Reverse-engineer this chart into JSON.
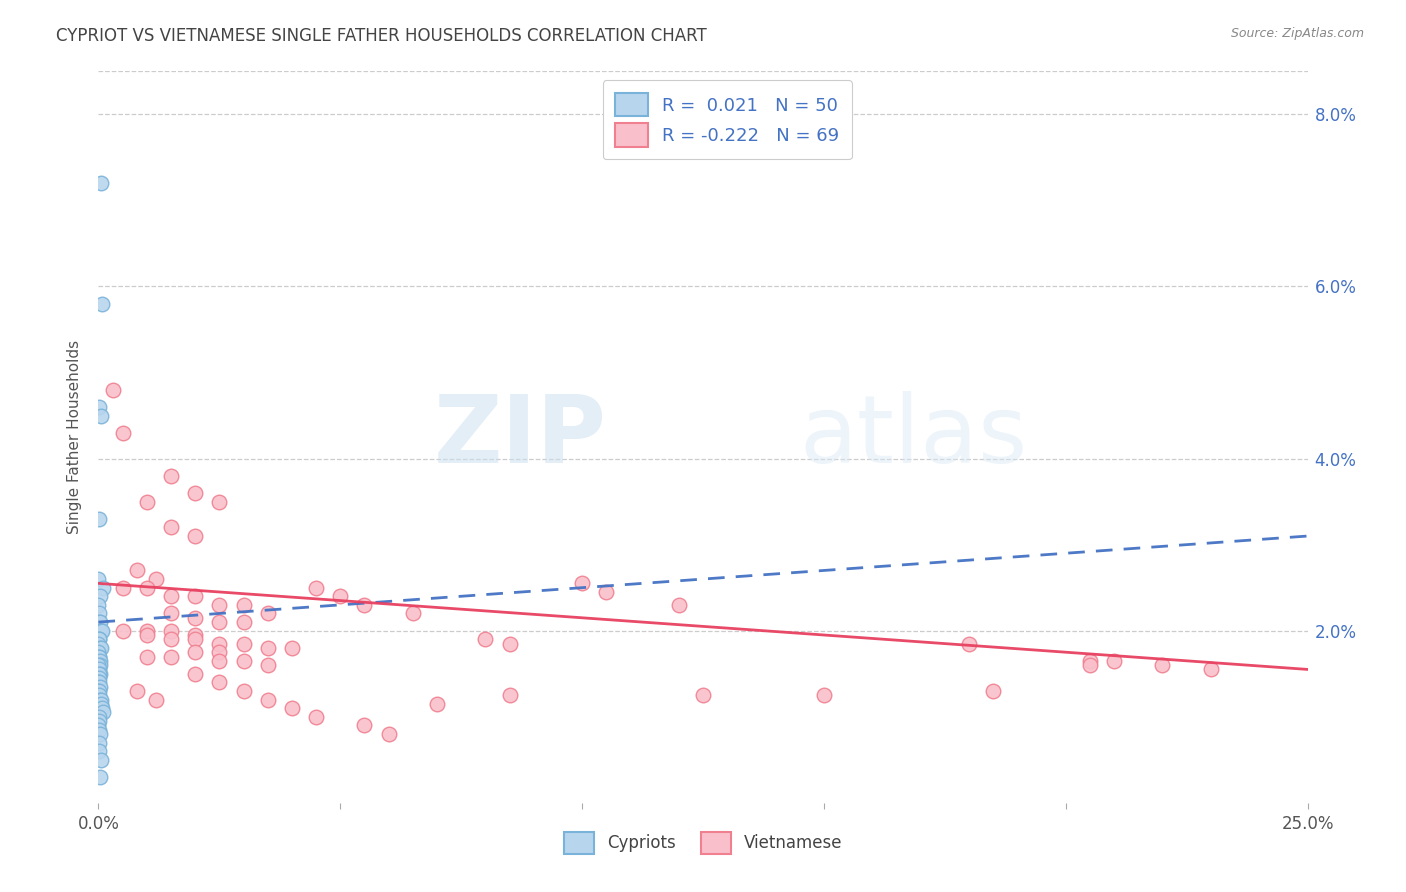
{
  "title": "CYPRIOT VS VIETNAMESE SINGLE FATHER HOUSEHOLDS CORRELATION CHART",
  "source": "Source: ZipAtlas.com",
  "ylabel": "Single Father Households",
  "ytick_vals": [
    2.0,
    4.0,
    6.0,
    8.0
  ],
  "xmin": 0.0,
  "xmax": 25.0,
  "ymin": 0.0,
  "ymax": 8.5,
  "cypriot_color_edge": "#7ab3d9",
  "cypriot_color_fill": "#b8d5ee",
  "vietnamese_color_edge": "#f08090",
  "vietnamese_color_fill": "#f9c0cb",
  "trend_cypriot_color": "#4472c4",
  "trend_vietnamese_color": "#e84060",
  "cypriot_x": [
    0.05,
    0.08,
    0.02,
    0.06,
    0.01,
    0.0,
    0.09,
    0.03,
    0.0,
    0.01,
    0.02,
    0.04,
    0.03,
    0.05,
    0.07,
    0.02,
    0.01,
    0.0,
    0.04,
    0.06,
    0.0,
    0.01,
    0.02,
    0.03,
    0.04,
    0.0,
    0.02,
    0.03,
    0.01,
    0.02,
    0.0,
    0.01,
    0.04,
    0.0,
    0.01,
    0.02,
    0.04,
    0.05,
    0.06,
    0.08,
    0.09,
    0.01,
    0.01,
    0.0,
    0.02,
    0.03,
    0.02,
    0.01,
    0.05,
    0.03
  ],
  "cypriot_y": [
    7.2,
    5.8,
    4.6,
    4.5,
    3.3,
    2.6,
    2.5,
    2.4,
    2.3,
    2.2,
    2.1,
    2.1,
    2.0,
    2.0,
    2.0,
    1.9,
    1.9,
    1.85,
    1.8,
    1.8,
    1.75,
    1.7,
    1.7,
    1.65,
    1.6,
    1.6,
    1.55,
    1.5,
    1.5,
    1.45,
    1.4,
    1.4,
    1.35,
    1.3,
    1.3,
    1.25,
    1.2,
    1.2,
    1.15,
    1.1,
    1.05,
    1.0,
    0.95,
    0.9,
    0.85,
    0.8,
    0.7,
    0.6,
    0.5,
    0.3
  ],
  "vietnamese_x": [
    0.3,
    0.5,
    1.5,
    2.0,
    2.5,
    1.0,
    1.5,
    2.0,
    0.8,
    1.2,
    0.5,
    1.0,
    1.5,
    2.0,
    2.5,
    3.0,
    3.5,
    1.5,
    2.0,
    2.5,
    3.0,
    0.5,
    1.0,
    1.5,
    2.0,
    1.0,
    1.5,
    2.0,
    2.5,
    3.0,
    3.5,
    4.0,
    2.0,
    2.5,
    1.5,
    1.0,
    2.5,
    3.0,
    3.5,
    4.5,
    5.0,
    5.5,
    6.5,
    8.0,
    8.5,
    10.0,
    10.5,
    12.0,
    18.0,
    20.5,
    0.8,
    1.2,
    2.0,
    2.5,
    3.0,
    3.5,
    4.0,
    4.5,
    5.5,
    6.0,
    7.0,
    8.5,
    12.5,
    15.0,
    18.5,
    20.5,
    21.0,
    22.0,
    23.0
  ],
  "vietnamese_y": [
    4.8,
    4.3,
    3.8,
    3.6,
    3.5,
    3.5,
    3.2,
    3.1,
    2.7,
    2.6,
    2.5,
    2.5,
    2.4,
    2.4,
    2.3,
    2.3,
    2.2,
    2.2,
    2.15,
    2.1,
    2.1,
    2.0,
    2.0,
    2.0,
    1.95,
    1.95,
    1.9,
    1.9,
    1.85,
    1.85,
    1.8,
    1.8,
    1.75,
    1.75,
    1.7,
    1.7,
    1.65,
    1.65,
    1.6,
    2.5,
    2.4,
    2.3,
    2.2,
    1.9,
    1.85,
    2.55,
    2.45,
    2.3,
    1.85,
    1.65,
    1.3,
    1.2,
    1.5,
    1.4,
    1.3,
    1.2,
    1.1,
    1.0,
    0.9,
    0.8,
    1.15,
    1.25,
    1.25,
    1.25,
    1.3,
    1.6,
    1.65,
    1.6,
    1.55
  ],
  "cy_trend_x": [
    0.0,
    25.0
  ],
  "cy_trend_y": [
    2.1,
    3.1
  ],
  "vn_trend_x": [
    0.0,
    25.0
  ],
  "vn_trend_y": [
    2.55,
    1.55
  ],
  "watermark_zip": "ZIP",
  "watermark_atlas": "atlas",
  "grid_color": "#cccccc",
  "background_color": "#ffffff",
  "xtick_labels_show": [
    "0.0%",
    "",
    "",
    "",
    "",
    "25.0%"
  ],
  "xtick_positions": [
    0,
    5,
    10,
    15,
    20,
    25
  ]
}
